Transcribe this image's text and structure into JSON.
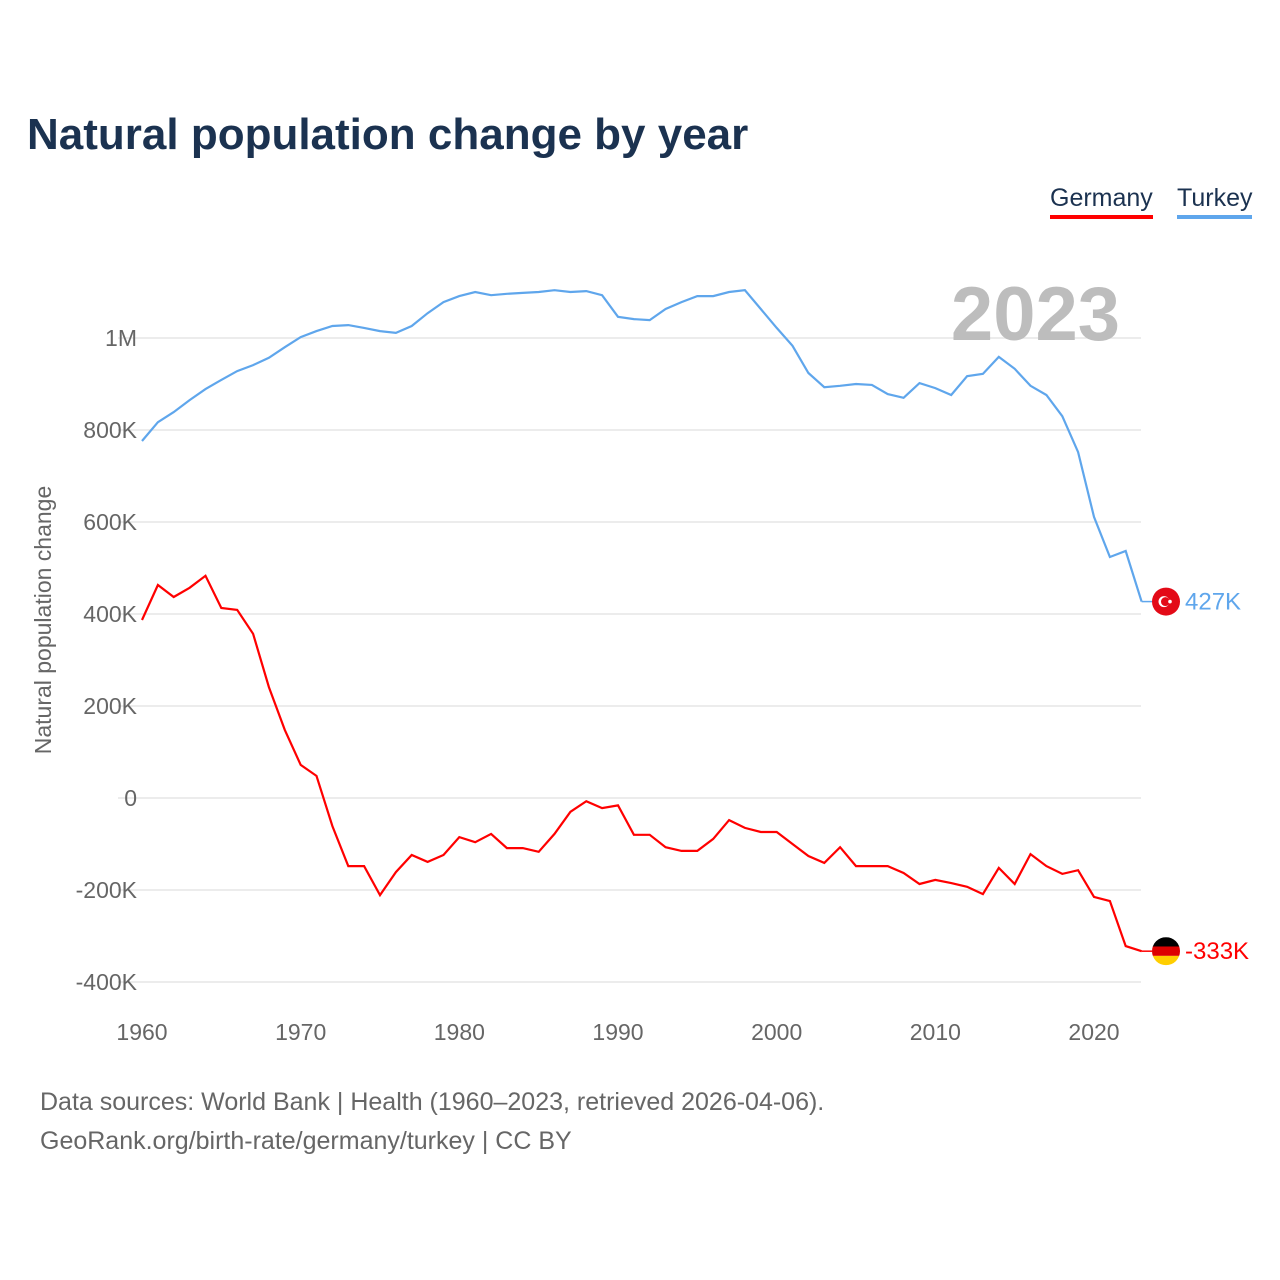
{
  "chart_data": {
    "type": "line",
    "title": "Natural population change by year",
    "ylabel": "Natural population change",
    "xlabel": "",
    "year_label": "2023",
    "ylim": [
      -400000,
      1100000
    ],
    "xlim": [
      1960,
      2023
    ],
    "yticks": [
      {
        "v": -400000,
        "label": "-400K"
      },
      {
        "v": -200000,
        "label": "-200K"
      },
      {
        "v": 0,
        "label": "0"
      },
      {
        "v": 200000,
        "label": "200K"
      },
      {
        "v": 400000,
        "label": "400K"
      },
      {
        "v": 600000,
        "label": "600K"
      },
      {
        "v": 800000,
        "label": "800K"
      },
      {
        "v": 1000000,
        "label": "1M"
      }
    ],
    "xticks": [
      {
        "v": 1960,
        "label": "1960"
      },
      {
        "v": 1970,
        "label": "1970"
      },
      {
        "v": 1980,
        "label": "1980"
      },
      {
        "v": 1990,
        "label": "1990"
      },
      {
        "v": 2000,
        "label": "2000"
      },
      {
        "v": 2010,
        "label": "2010"
      },
      {
        "v": 2020,
        "label": "2020"
      }
    ],
    "grid": true,
    "legend_position": "top-right",
    "x_start": 1960,
    "series": [
      {
        "name": "Germany",
        "color": "#ff0000",
        "end_label": "-333K",
        "flag": "germany-flag",
        "values": [
          387000,
          463000,
          437000,
          457000,
          483000,
          413000,
          409000,
          357000,
          241000,
          148000,
          72000,
          48000,
          -61000,
          -148000,
          -148000,
          -211000,
          -161000,
          -124000,
          -139000,
          -124000,
          -85000,
          -96000,
          -78000,
          -109000,
          -109000,
          -117000,
          -78000,
          -30000,
          -7000,
          -22000,
          -16000,
          -80000,
          -80000,
          -107000,
          -115000,
          -115000,
          -89000,
          -48000,
          -65000,
          -74000,
          -74000,
          -100000,
          -126000,
          -141000,
          -107000,
          -148000,
          -148000,
          -148000,
          -163000,
          -187000,
          -178000,
          -185000,
          -193000,
          -209000,
          -152000,
          -187000,
          -122000,
          -148000,
          -165000,
          -157000,
          -215000,
          -224000,
          -322000,
          -333000
        ]
      },
      {
        "name": "Turkey",
        "color": "#5fa6ec",
        "end_label": "427K",
        "flag": "turkey-flag",
        "values": [
          776000,
          817000,
          839000,
          865000,
          889000,
          909000,
          928000,
          941000,
          957000,
          980000,
          1002000,
          1015000,
          1026000,
          1028000,
          1022000,
          1015000,
          1011000,
          1026000,
          1054000,
          1078000,
          1091000,
          1100000,
          1093000,
          1096000,
          1098000,
          1100000,
          1104000,
          1100000,
          1102000,
          1093000,
          1046000,
          1041000,
          1039000,
          1063000,
          1078000,
          1091000,
          1091000,
          1100000,
          1104000,
          1063000,
          1022000,
          983000,
          924000,
          893000,
          896000,
          900000,
          898000,
          878000,
          870000,
          902000,
          891000,
          876000,
          917000,
          922000,
          959000,
          933000,
          896000,
          876000,
          830000,
          752000,
          611000,
          524000,
          537000,
          427000
        ]
      }
    ]
  },
  "footer": {
    "sources": "Data sources: World Bank | Health (1960–2023, retrieved 2026-04-06).",
    "credit": "GeoRank.org/birth-rate/germany/turkey | CC BY"
  }
}
